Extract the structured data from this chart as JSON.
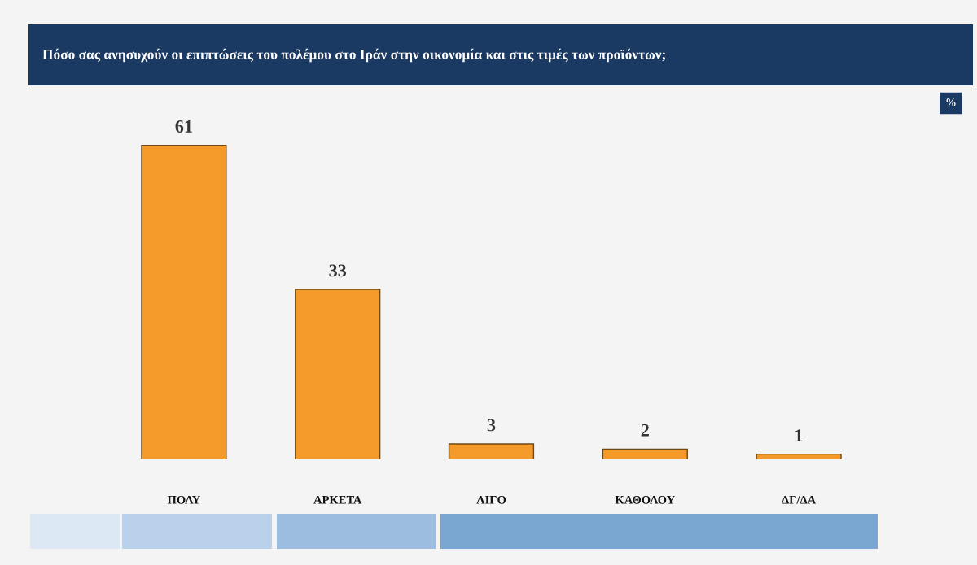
{
  "chart_data": {
    "type": "bar",
    "title": "Πόσο σας ανησυχούν οι επιπτώσεις του πολέμου στο Ιράν στην οικονομία και στις τιμές των προϊόντων;",
    "categories": [
      "ΠΟΛΥ",
      "ΑΡΚΕΤΑ",
      "ΛΙΓΟ",
      "ΚΑΘΟΛΟΥ",
      "ΔΓ/ΔΑ"
    ],
    "values": [
      61,
      33,
      3,
      2,
      1
    ],
    "color": "#f39a2a",
    "data_labels": true,
    "tick_labels": "x",
    "annotations": [
      "%"
    ]
  }
}
